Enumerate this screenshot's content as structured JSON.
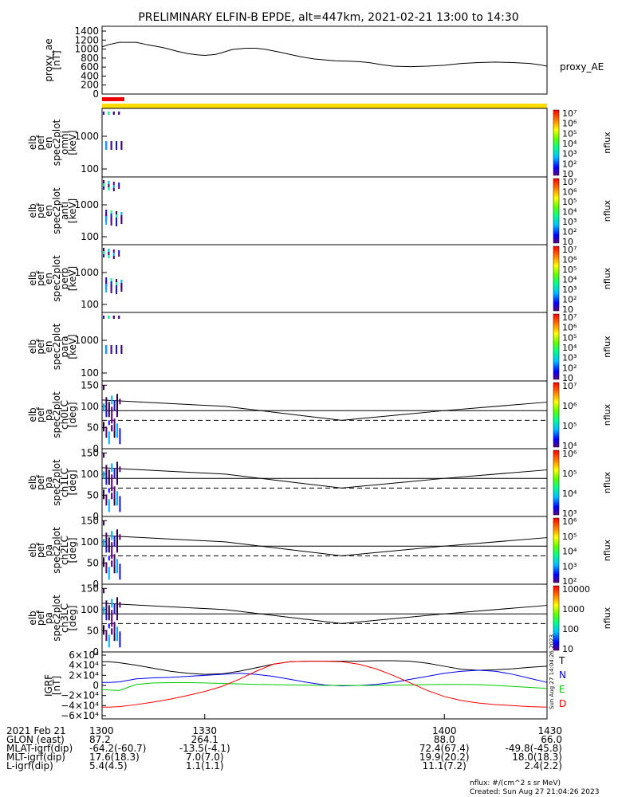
{
  "title": "PRELIMINARY ELFIN-B EPDE, alt=447km, 2021-02-21 13:00 to 14:30",
  "chart_data": [
    {
      "type": "line",
      "panel": "proxy_ae",
      "ylabel_lines": [
        "proxy_ae",
        "[nT]"
      ],
      "series": [
        {
          "name": "proxy_AE",
          "x": [
            1300,
            1302,
            1305,
            1310,
            1313,
            1318,
            1322,
            1325,
            1328,
            1330,
            1333,
            1335,
            1338,
            1342,
            1345,
            1348,
            1352,
            1355,
            1358,
            1362,
            1365,
            1368,
            1372,
            1375,
            1378,
            1382,
            1385,
            1390,
            1395,
            1400,
            1405,
            1410,
            1415,
            1420,
            1425,
            1428,
            1430
          ],
          "values": [
            1050,
            1100,
            1150,
            1150,
            1100,
            1030,
            950,
            900,
            870,
            860,
            880,
            920,
            990,
            1020,
            1020,
            990,
            930,
            880,
            830,
            780,
            760,
            740,
            730,
            720,
            700,
            650,
            620,
            610,
            620,
            640,
            680,
            700,
            710,
            700,
            680,
            650,
            620
          ]
        }
      ],
      "ylim": [
        0,
        1400
      ],
      "yticks": [
        "0",
        "200",
        "400",
        "600",
        "800",
        "1000",
        "1200",
        "1400"
      ],
      "legend": "right"
    },
    {
      "type": "heatmap",
      "panel": "omni",
      "ylabel_lines": [
        "elb",
        "pef",
        "en",
        "spec2plot",
        "omni",
        "[keV]"
      ],
      "yscale": "log",
      "yticks": [
        "100",
        "1000"
      ],
      "colorbar": {
        "label": "nflux",
        "ticks": [
          "10",
          "10²",
          "10³",
          "10⁴",
          "10⁵",
          "10⁶",
          "10⁷"
        ]
      }
    },
    {
      "type": "heatmap",
      "panel": "anti",
      "ylabel_lines": [
        "elb",
        "pef",
        "en",
        "spec2plot",
        "anti",
        "[keV]"
      ],
      "yscale": "log",
      "yticks": [
        "100",
        "1000"
      ],
      "colorbar": {
        "label": "nflux",
        "ticks": [
          "10",
          "10²",
          "10³",
          "10⁴",
          "10⁵",
          "10⁶",
          "10⁷"
        ]
      }
    },
    {
      "type": "heatmap",
      "panel": "perp",
      "ylabel_lines": [
        "elb",
        "pef",
        "en",
        "spec2plot",
        "perp",
        "[keV]"
      ],
      "yscale": "log",
      "yticks": [
        "100",
        "1000"
      ],
      "colorbar": {
        "label": "nflux",
        "ticks": [
          "10",
          "10²",
          "10³",
          "10⁴",
          "10⁵",
          "10⁶",
          "10⁷"
        ]
      }
    },
    {
      "type": "heatmap",
      "panel": "para",
      "ylabel_lines": [
        "elb",
        "pef",
        "en",
        "spec2plot",
        "para",
        "[keV]"
      ],
      "yscale": "log",
      "yticks": [
        "100",
        "1000"
      ],
      "colorbar": {
        "label": "nflux",
        "ticks": [
          "10",
          "10²",
          "10³",
          "10⁴",
          "10⁵",
          "10⁶",
          "10⁷"
        ]
      }
    },
    {
      "type": "heatmap",
      "panel": "ch0LC",
      "ylabel_lines": [
        "elb",
        "pef",
        "pa",
        "spec2plot",
        "ch0LC",
        "[deg]"
      ],
      "yticks": [
        "0",
        "50",
        "100",
        "150"
      ],
      "colorbar": {
        "label": "nflux",
        "ticks": [
          "10⁴",
          "10⁵",
          "10⁶",
          "10⁷"
        ]
      }
    },
    {
      "type": "heatmap",
      "panel": "ch1LC",
      "ylabel_lines": [
        "elb",
        "pef",
        "pa",
        "spec2plot",
        "ch1LC",
        "[deg]"
      ],
      "yticks": [
        "0",
        "50",
        "100",
        "150"
      ],
      "colorbar": {
        "label": "nflux",
        "ticks": [
          "10³",
          "10⁴",
          "10⁵",
          "10⁶"
        ]
      }
    },
    {
      "type": "heatmap",
      "panel": "ch2LC",
      "ylabel_lines": [
        "elb",
        "pef",
        "pa",
        "spec2plot",
        "ch2LC",
        "[deg]"
      ],
      "yticks": [
        "0",
        "50",
        "100",
        "150"
      ],
      "colorbar": {
        "label": "nflux",
        "ticks": [
          "10²",
          "10³",
          "10⁴",
          "10⁵",
          "10⁶"
        ]
      }
    },
    {
      "type": "heatmap",
      "panel": "ch3LC",
      "ylabel_lines": [
        "elb",
        "pef",
        "pa",
        "spec2plot",
        "ch3LC",
        "[deg]"
      ],
      "yticks": [
        "0",
        "50",
        "100",
        "150"
      ],
      "colorbar": {
        "label": "nflux",
        "ticks": [
          "10",
          "100",
          "1000",
          "10000"
        ]
      }
    },
    {
      "type": "line",
      "panel": "IGRF",
      "ylabel_lines": [
        "IGRF",
        "[nT]"
      ],
      "ylim": [
        -60000,
        60000
      ],
      "yticks": [
        "−6×10⁴",
        "−4×10⁴",
        "−2×10⁴",
        "0",
        "2×10⁴",
        "4×10⁴",
        "6×10⁴"
      ],
      "x": [
        1300,
        1302,
        1305,
        1310,
        1315,
        1320,
        1325,
        1330,
        1335,
        1340,
        1345,
        1350,
        1355,
        1360,
        1365,
        1370,
        1375,
        1380,
        1385,
        1390,
        1395,
        1400,
        1405,
        1410,
        1415,
        1420,
        1425,
        1430
      ],
      "series": [
        {
          "name": "T",
          "color": "#000000",
          "values": [
            47000,
            47000,
            45000,
            40000,
            34000,
            28000,
            24000,
            22000,
            23000,
            28000,
            35000,
            42000,
            47000,
            48000,
            48000,
            48000,
            48000,
            49000,
            49000,
            48000,
            44000,
            38000,
            32000,
            30000,
            31000,
            33000,
            36000,
            38000
          ]
        },
        {
          "name": "N",
          "color": "#0000ee",
          "values": [
            6000,
            6000,
            7000,
            13000,
            15000,
            16000,
            18000,
            20000,
            22000,
            24000,
            22000,
            18000,
            12000,
            6000,
            1000,
            -1000,
            0,
            2000,
            6000,
            12000,
            18000,
            24000,
            28000,
            30000,
            28000,
            22000,
            14000,
            6000
          ]
        },
        {
          "name": "E",
          "color": "#00cc00",
          "values": [
            -8000,
            -9000,
            -10000,
            2000,
            5000,
            5500,
            5500,
            5000,
            4000,
            3000,
            2000,
            1500,
            1000,
            500,
            0,
            0,
            0,
            0,
            500,
            1000,
            1500,
            2000,
            2000,
            1500,
            0,
            -2000,
            -4000,
            -6000
          ]
        },
        {
          "name": "D",
          "color": "#ff0000",
          "values": [
            -43000,
            -43000,
            -42000,
            -38000,
            -33000,
            -27000,
            -20000,
            -12000,
            -2000,
            12000,
            28000,
            42000,
            47000,
            48000,
            48000,
            47000,
            42000,
            33000,
            20000,
            5000,
            -10000,
            -22000,
            -30000,
            -35000,
            -38000,
            -40000,
            -42000,
            -43000
          ]
        }
      ],
      "legend": "right"
    }
  ],
  "xticks": [
    "1300",
    "1330",
    "1400",
    "1430"
  ],
  "ephemeris": {
    "rows": [
      {
        "label": "2021 Feb 21",
        "vals": [
          "1300",
          "1330",
          "1400",
          "1430"
        ]
      },
      {
        "label": "GLON (east)",
        "vals": [
          "87.2",
          "264.1",
          "88.0",
          "66.0"
        ]
      },
      {
        "label": "MLAT-igrf(dip)",
        "vals": [
          "-64.2(-60.7)",
          "-13.5(-4.1)",
          "72.4(67.4)",
          "-49.8(-45.8)"
        ]
      },
      {
        "label": "MLT-igrf(dip)",
        "vals": [
          "17.6(18.3)",
          "7.0(7.0)",
          "19.9(20.2)",
          "18.0(18.3)"
        ]
      },
      {
        "label": "L-igrf(dip)",
        "vals": [
          "5.4(4.5)",
          "1.1(1.1)",
          "11.1(7.2)",
          "2.4(2.2)"
        ]
      }
    ]
  },
  "footer": {
    "units": "nflux: #/(cm^2 s sr MeV)",
    "created": "Created: Sun Aug 27 21:04:26 2023",
    "side_stamp": "Sun Aug 27 14:04:26 2023"
  },
  "colors": {
    "sci_zone_bar": "#ffdd00",
    "sci_zone_mark": "#ee0000"
  }
}
